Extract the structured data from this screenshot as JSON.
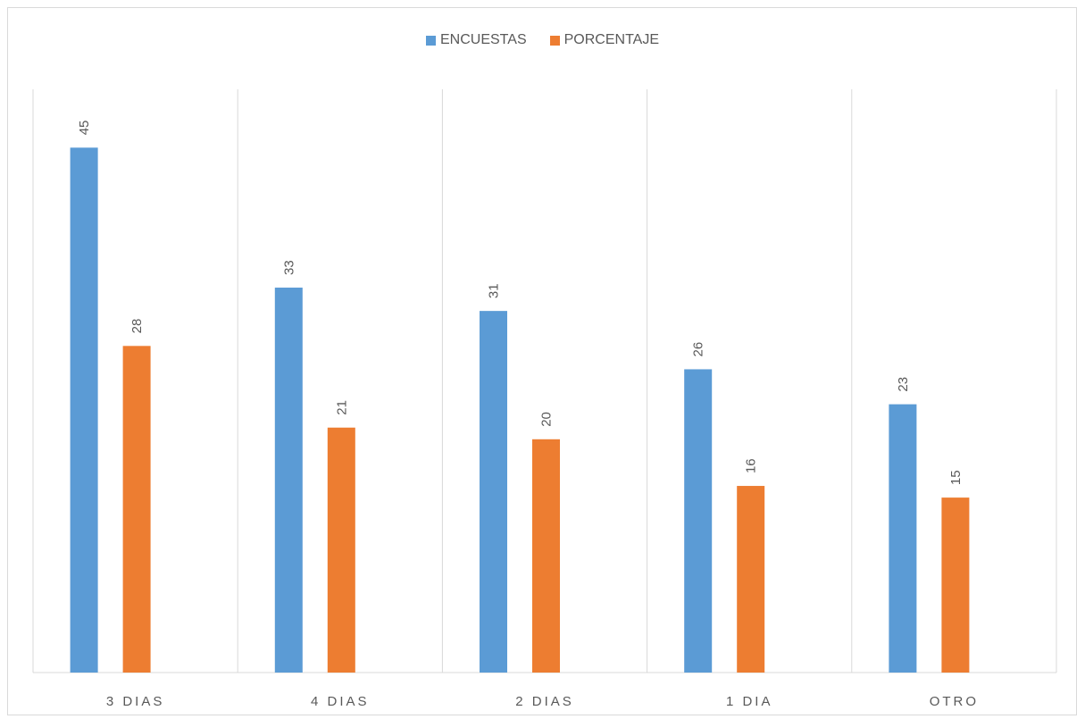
{
  "chart_data": {
    "type": "bar",
    "categories": [
      "3 DIAS",
      "4 DIAS",
      "2 DIAS",
      "1 DIA",
      "OTRO"
    ],
    "series": [
      {
        "name": "ENCUESTAS",
        "color": "#5b9bd5",
        "values": [
          45,
          33,
          31,
          26,
          23
        ]
      },
      {
        "name": "PORCENTAJE",
        "color": "#ed7d31",
        "values": [
          28,
          21,
          20,
          16,
          15
        ]
      }
    ],
    "title": "",
    "xlabel": "",
    "ylabel": "",
    "ylim": [
      0,
      50
    ],
    "grid": "vertical category separators",
    "legend_position": "top",
    "data_labels": true
  }
}
